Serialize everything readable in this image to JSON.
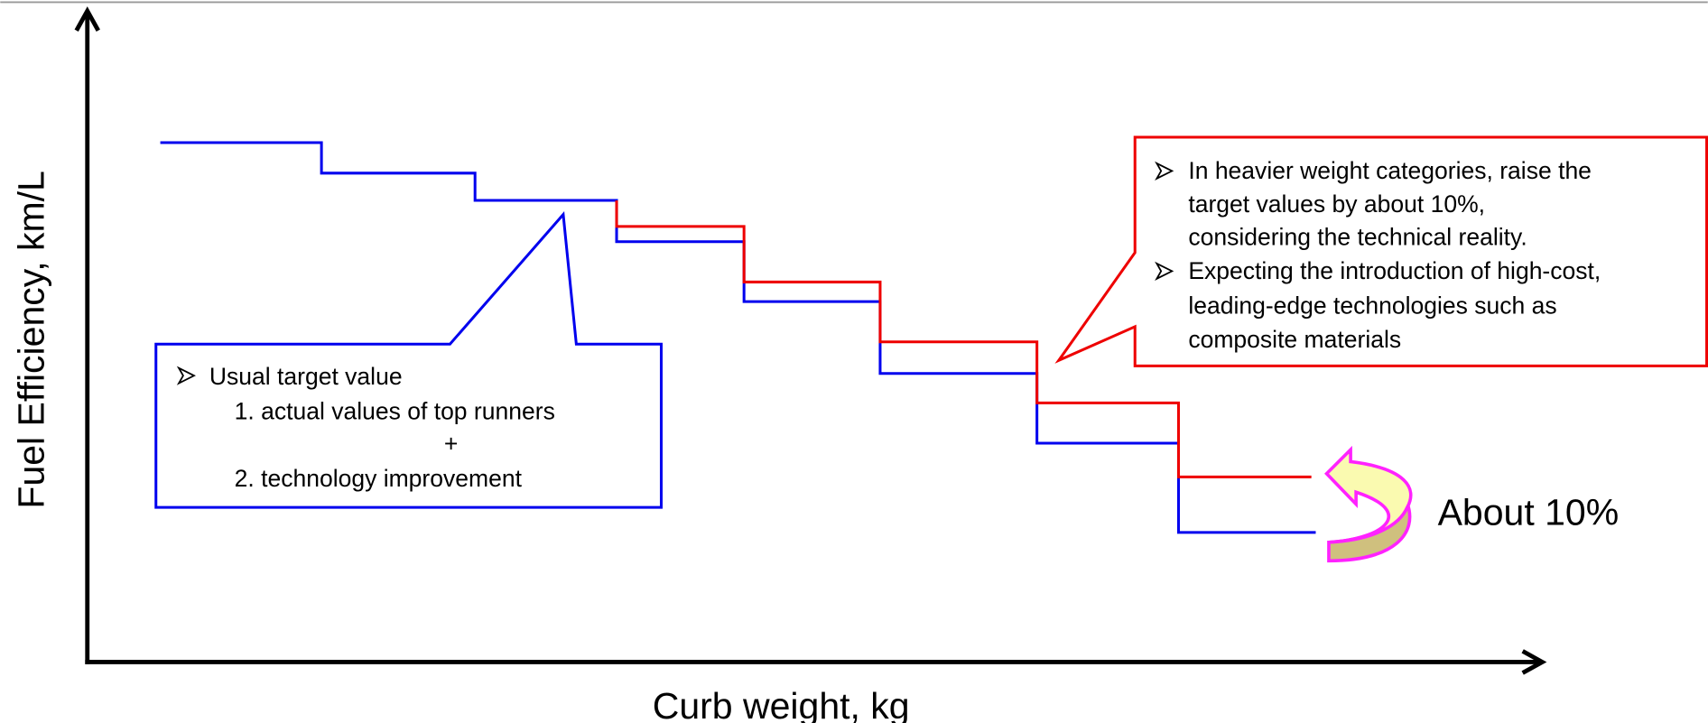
{
  "axes": {
    "y_label": "Fuel Efficiency, km/L",
    "x_label": "Curb weight, kg"
  },
  "callouts": [
    {
      "lines": [
        "Usual target value",
        "1. actual values of top runners",
        "+",
        "2. technology improvement"
      ]
    },
    {
      "lines": [
        "In heavier weight categories, raise the",
        "target values by about 10%,",
        "considering the technical reality.",
        "Expecting the introduction of high-cost,",
        "leading-edge technologies such as",
        "composite materials"
      ]
    }
  ],
  "annotation": "About 10%"
}
